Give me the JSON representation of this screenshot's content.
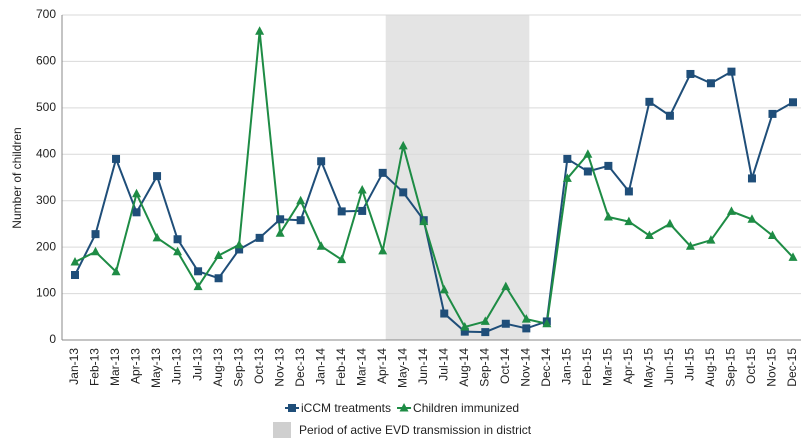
{
  "chart_data": {
    "type": "line",
    "y_label": "Number of children",
    "categories": [
      "Jan-13",
      "Feb-13",
      "Mar-13",
      "Apr-13",
      "May-13",
      "Jun-13",
      "Jul-13",
      "Aug-13",
      "Sep-13",
      "Oct-13",
      "Nov-13",
      "Dec-13",
      "Jan-14",
      "Feb-14",
      "Mar-14",
      "Apr-14",
      "May-14",
      "Jun-14",
      "Jul-14",
      "Aug-14",
      "Sep-14",
      "Oct-14",
      "Nov-14",
      "Dec-14",
      "Jan-15",
      "Feb-15",
      "Mar-15",
      "Apr-15",
      "May-15",
      "Jun-15",
      "Jul-15",
      "Aug-15",
      "Sep-15",
      "Oct-15",
      "Nov-15",
      "Dec-15"
    ],
    "series": [
      {
        "name": "iCCM treatments",
        "color": "#1f4e79",
        "marker": "square",
        "values": [
          140,
          228,
          390,
          275,
          353,
          217,
          148,
          133,
          195,
          220,
          260,
          258,
          385,
          277,
          278,
          360,
          318,
          258,
          57,
          18,
          17,
          35,
          25,
          40,
          390,
          363,
          375,
          320,
          513,
          483,
          573,
          553,
          578,
          348,
          487,
          512
        ]
      },
      {
        "name": "Children immunized",
        "color": "#1e8c45",
        "marker": "triangle",
        "values": [
          168,
          190,
          147,
          315,
          220,
          190,
          115,
          182,
          205,
          665,
          230,
          300,
          202,
          173,
          323,
          192,
          418,
          255,
          108,
          28,
          40,
          115,
          45,
          35,
          348,
          400,
          265,
          255,
          225,
          250,
          202,
          215,
          277,
          260,
          225,
          178
        ]
      }
    ],
    "shaded": {
      "from": "Apr-14",
      "to": "Nov-14",
      "label": "Period of active EVD transmission in district",
      "color": "#e4e4e4"
    },
    "ylim": [
      0,
      700
    ],
    "yticks": [
      0,
      100,
      200,
      300,
      400,
      500,
      600,
      700
    ],
    "grid": true
  }
}
